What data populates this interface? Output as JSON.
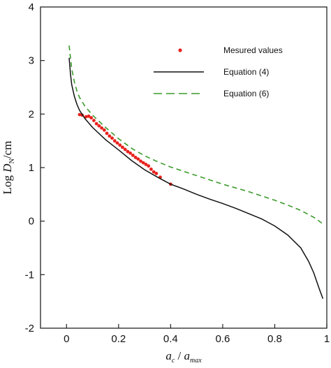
{
  "chart_data": {
    "type": "line",
    "xlim": [
      -0.1,
      1.0
    ],
    "ylim": [
      -2,
      4
    ],
    "x_ticks": [
      0,
      0.2,
      0.4,
      0.6,
      0.8,
      1
    ],
    "x_tick_labels": [
      "0",
      "0.2",
      "0.4",
      "0.6",
      "0.8",
      "1"
    ],
    "y_ticks": [
      -2,
      -1,
      0,
      1,
      2,
      3,
      4
    ],
    "y_tick_labels": [
      "-2",
      "-1",
      "0",
      "1",
      "2",
      "3",
      "4"
    ],
    "xlabel": {
      "main": "a",
      "sub1": "c",
      "sep": " / ",
      "sub2": "max"
    },
    "ylabel": {
      "prefix": "Log ",
      "main": "D",
      "sub": "N",
      "suffix": "/cm"
    },
    "grid": false,
    "legend_position": "top-right",
    "series": [
      {
        "name": "Mesured values",
        "kind": "scatter",
        "color": "#e8231f",
        "points": [
          [
            0.05,
            1.99
          ],
          [
            0.06,
            1.98
          ],
          [
            0.075,
            1.95
          ],
          [
            0.085,
            1.96
          ],
          [
            0.095,
            1.93
          ],
          [
            0.105,
            1.88
          ],
          [
            0.115,
            1.82
          ],
          [
            0.125,
            1.78
          ],
          [
            0.135,
            1.74
          ],
          [
            0.145,
            1.7
          ],
          [
            0.155,
            1.64
          ],
          [
            0.165,
            1.59
          ],
          [
            0.175,
            1.55
          ],
          [
            0.185,
            1.5
          ],
          [
            0.195,
            1.46
          ],
          [
            0.205,
            1.42
          ],
          [
            0.215,
            1.38
          ],
          [
            0.225,
            1.34
          ],
          [
            0.235,
            1.3
          ],
          [
            0.245,
            1.27
          ],
          [
            0.255,
            1.23
          ],
          [
            0.265,
            1.19
          ],
          [
            0.275,
            1.16
          ],
          [
            0.285,
            1.12
          ],
          [
            0.295,
            1.09
          ],
          [
            0.305,
            1.06
          ],
          [
            0.315,
            1.03
          ],
          [
            0.325,
            0.97
          ],
          [
            0.335,
            0.92
          ],
          [
            0.345,
            0.89
          ],
          [
            0.36,
            0.82
          ],
          [
            0.4,
            0.69
          ]
        ]
      },
      {
        "name": "Equation (4)",
        "kind": "line",
        "color": "#111111",
        "dash": "",
        "points": [
          [
            0.01,
            3.05
          ],
          [
            0.015,
            2.75
          ],
          [
            0.02,
            2.55
          ],
          [
            0.03,
            2.33
          ],
          [
            0.04,
            2.18
          ],
          [
            0.05,
            2.07
          ],
          [
            0.07,
            1.92
          ],
          [
            0.1,
            1.75
          ],
          [
            0.15,
            1.52
          ],
          [
            0.2,
            1.33
          ],
          [
            0.25,
            1.13
          ],
          [
            0.3,
            0.96
          ],
          [
            0.35,
            0.82
          ],
          [
            0.4,
            0.69
          ],
          [
            0.45,
            0.6
          ],
          [
            0.5,
            0.5
          ],
          [
            0.55,
            0.41
          ],
          [
            0.6,
            0.33
          ],
          [
            0.65,
            0.24
          ],
          [
            0.7,
            0.14
          ],
          [
            0.75,
            0.04
          ],
          [
            0.8,
            -0.09
          ],
          [
            0.85,
            -0.26
          ],
          [
            0.9,
            -0.5
          ],
          [
            0.93,
            -0.75
          ],
          [
            0.95,
            -0.97
          ],
          [
            0.97,
            -1.25
          ],
          [
            0.985,
            -1.45
          ]
        ]
      },
      {
        "name": "Equation (6)",
        "kind": "line",
        "color": "#3a9a2a",
        "dash": "7,5",
        "points": [
          [
            0.01,
            3.28
          ],
          [
            0.015,
            3.05
          ],
          [
            0.02,
            2.85
          ],
          [
            0.03,
            2.6
          ],
          [
            0.04,
            2.43
          ],
          [
            0.05,
            2.31
          ],
          [
            0.07,
            2.15
          ],
          [
            0.1,
            1.98
          ],
          [
            0.15,
            1.75
          ],
          [
            0.2,
            1.54
          ],
          [
            0.25,
            1.36
          ],
          [
            0.3,
            1.22
          ],
          [
            0.35,
            1.11
          ],
          [
            0.4,
            1.01
          ],
          [
            0.45,
            0.93
          ],
          [
            0.5,
            0.85
          ],
          [
            0.55,
            0.77
          ],
          [
            0.6,
            0.69
          ],
          [
            0.65,
            0.62
          ],
          [
            0.7,
            0.55
          ],
          [
            0.75,
            0.47
          ],
          [
            0.8,
            0.39
          ],
          [
            0.85,
            0.3
          ],
          [
            0.9,
            0.2
          ],
          [
            0.95,
            0.07
          ],
          [
            0.985,
            -0.05
          ]
        ]
      }
    ]
  }
}
